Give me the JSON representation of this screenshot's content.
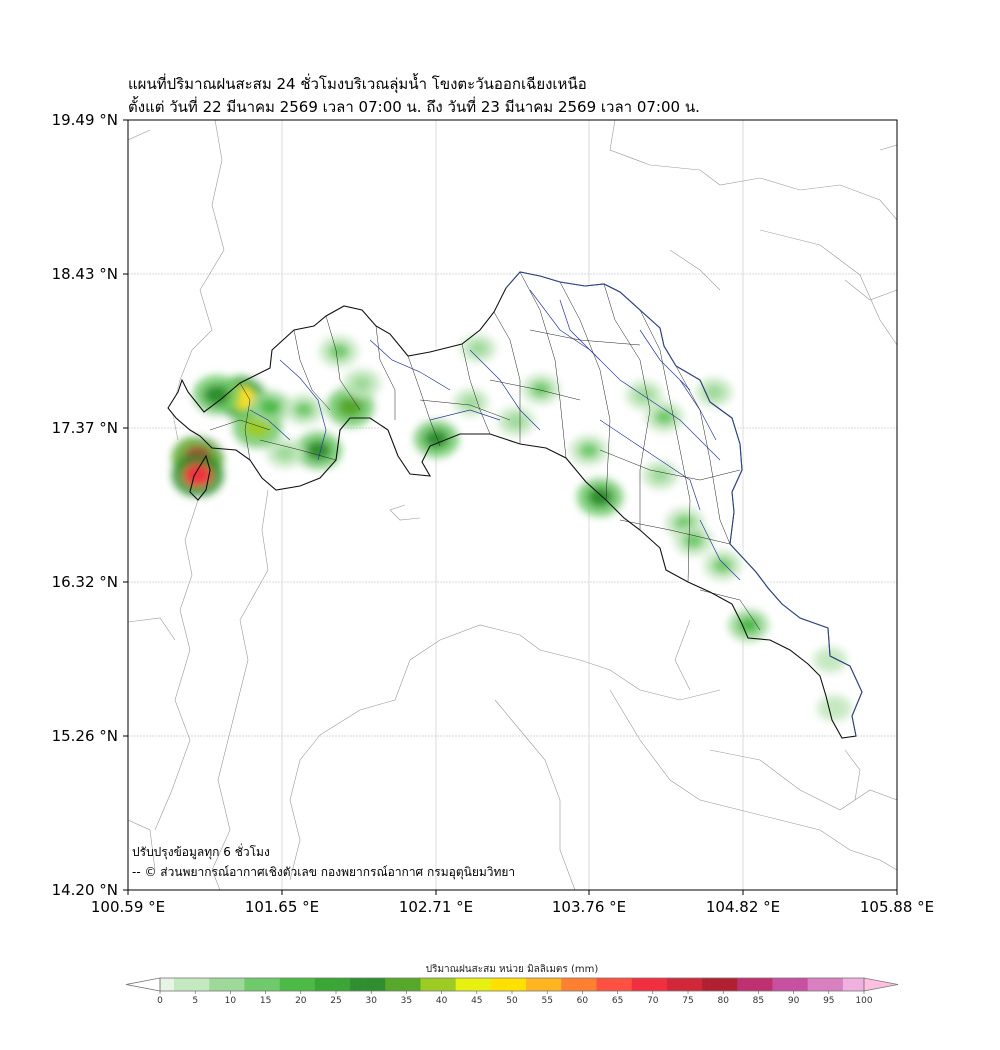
{
  "title_line1": "แผนที่ปริมาณฝนสะสม 24 ชั่วโมงบริเวณลุ่มน้ำ โขงตะวันออกเฉียงเหนือ",
  "title_line2": "ตั้งแต่ วันที่ 22 มีนาคม 2569 เวลา 07:00 น. ถึง วันที่ 23 มีนาคม 2569 เวลา 07:00 น.",
  "lat_ticks": [
    "19.49 °N",
    "18.43 °N",
    "17.37 °N",
    "16.32 °N",
    "15.26 °N",
    "14.20 °N"
  ],
  "lon_ticks": [
    "100.59 °E",
    "101.65 °E",
    "102.71 °E",
    "103.76 °E",
    "104.82 °E",
    "105.88 °E"
  ],
  "note_update": "ปรับปรุงข้อมูลทุก 6 ชั่วโมง",
  "note_credit": "-- © ส่วนพยากรณ์อากาศเชิงตัวเลข กองพยากรณ์อากาศ กรมอุตุนิยมวิทยา",
  "colorbar": {
    "title": "ปริมาณฝนสะสม หน่วย มิลลิเมตร (mm)",
    "labels": [
      "0",
      "5",
      "10",
      "15",
      "20",
      "25",
      "30",
      "35",
      "40",
      "45",
      "50",
      "55",
      "60",
      "65",
      "70",
      "75",
      "80",
      "85",
      "90",
      "95",
      "100"
    ],
    "colors": [
      "#ffffff",
      "#e6f5e3",
      "#c4e8bf",
      "#9ed99a",
      "#6fca6a",
      "#4cbb45",
      "#3aa636",
      "#2f8f2f",
      "#57a82a",
      "#9ccc22",
      "#e8f010",
      "#ffe000",
      "#ffb420",
      "#ff8030",
      "#ff5040",
      "#f03040",
      "#d02838",
      "#b02030",
      "#c03070",
      "#c850a0",
      "#d880c0",
      "#f0b0e0"
    ]
  },
  "rain_cells": [
    {
      "lon": 101.07,
      "lat": 17.17,
      "mm": 80
    },
    {
      "lon": 101.07,
      "lat": 17.05,
      "mm": 70
    },
    {
      "lon": 101.37,
      "lat": 17.58,
      "mm": 52
    },
    {
      "lon": 101.2,
      "lat": 17.6,
      "mm": 32
    },
    {
      "lon": 101.48,
      "lat": 17.38,
      "mm": 38
    },
    {
      "lon": 101.9,
      "lat": 17.22,
      "mm": 30
    },
    {
      "lon": 102.12,
      "lat": 17.52,
      "mm": 34
    },
    {
      "lon": 102.71,
      "lat": 17.3,
      "mm": 28
    },
    {
      "lon": 103.84,
      "lat": 16.9,
      "mm": 30
    },
    {
      "lon": 101.57,
      "lat": 17.52,
      "mm": 18
    },
    {
      "lon": 101.8,
      "lat": 17.5,
      "mm": 15
    },
    {
      "lon": 102.04,
      "lat": 17.9,
      "mm": 16
    },
    {
      "lon": 102.2,
      "lat": 17.68,
      "mm": 12
    },
    {
      "lon": 101.67,
      "lat": 17.2,
      "mm": 12
    },
    {
      "lon": 103.43,
      "lat": 17.64,
      "mm": 14
    },
    {
      "lon": 103.26,
      "lat": 17.42,
      "mm": 12
    },
    {
      "lon": 103.76,
      "lat": 17.22,
      "mm": 14
    },
    {
      "lon": 104.14,
      "lat": 17.6,
      "mm": 12
    },
    {
      "lon": 104.28,
      "lat": 17.45,
      "mm": 15
    },
    {
      "lon": 104.42,
      "lat": 16.72,
      "mm": 16
    },
    {
      "lon": 104.48,
      "lat": 16.6,
      "mm": 15
    },
    {
      "lon": 104.68,
      "lat": 16.43,
      "mm": 14
    },
    {
      "lon": 104.86,
      "lat": 16.02,
      "mm": 18
    },
    {
      "lon": 104.62,
      "lat": 17.62,
      "mm": 10
    },
    {
      "lon": 104.25,
      "lat": 17.05,
      "mm": 10
    },
    {
      "lon": 102.95,
      "lat": 17.55,
      "mm": 8
    },
    {
      "lon": 103.0,
      "lat": 17.92,
      "mm": 8
    },
    {
      "lon": 105.45,
      "lat": 15.45,
      "mm": 6
    },
    {
      "lon": 105.42,
      "lat": 15.78,
      "mm": 5
    }
  ]
}
